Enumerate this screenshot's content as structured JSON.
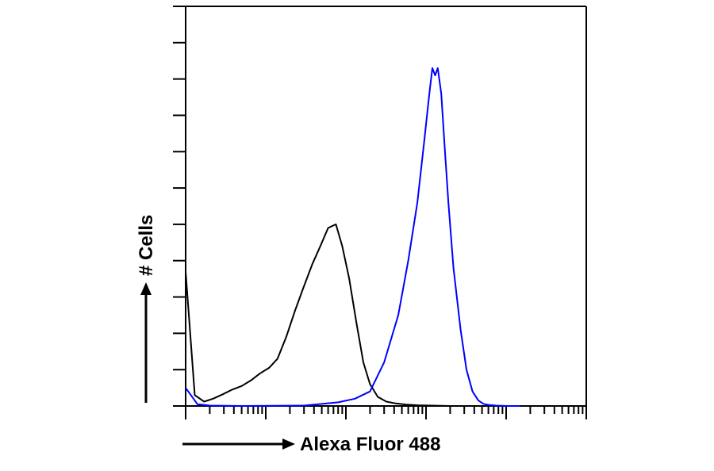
{
  "chart_data": {
    "type": "line",
    "title": "",
    "xlabel": "Alexa Fluor 488",
    "ylabel": "# Cells",
    "x_scale": "log",
    "xlim": [
      1,
      100000
    ],
    "ylim": [
      0,
      11
    ],
    "y_tick_count": 11,
    "grid": false,
    "legend": "none",
    "series": [
      {
        "color": "#000000",
        "x": [
          1,
          1.3,
          1.7,
          2.2,
          2.9,
          3.8,
          5,
          6.5,
          8.5,
          11,
          14,
          18,
          23,
          30,
          38,
          48,
          60,
          75,
          90,
          110,
          135,
          165,
          200,
          250,
          320,
          420,
          560,
          800,
          1200,
          2000
        ],
        "y": [
          3.7,
          0.3,
          0.12,
          0.2,
          0.32,
          0.45,
          0.55,
          0.7,
          0.9,
          1.05,
          1.3,
          1.9,
          2.6,
          3.3,
          3.9,
          4.4,
          4.9,
          5.0,
          4.4,
          3.5,
          2.3,
          1.2,
          0.6,
          0.25,
          0.12,
          0.07,
          0.04,
          0.02,
          0.01,
          0
        ]
      },
      {
        "color": "#0000ff",
        "x": [
          1,
          1.4,
          2,
          5,
          30,
          80,
          130,
          200,
          300,
          450,
          600,
          780,
          950,
          1100,
          1200,
          1300,
          1400,
          1550,
          1700,
          1900,
          2200,
          2700,
          3200,
          3800,
          4500,
          5200,
          6000,
          7500,
          10000,
          15000
        ],
        "y": [
          0.5,
          0.05,
          0.01,
          0,
          0.01,
          0.1,
          0.2,
          0.4,
          1.2,
          2.5,
          4.0,
          5.6,
          7.3,
          8.6,
          9.3,
          9.1,
          9.3,
          8.6,
          7.2,
          5.6,
          3.8,
          2.1,
          1.0,
          0.4,
          0.15,
          0.06,
          0.03,
          0.01,
          0,
          0
        ]
      }
    ]
  }
}
